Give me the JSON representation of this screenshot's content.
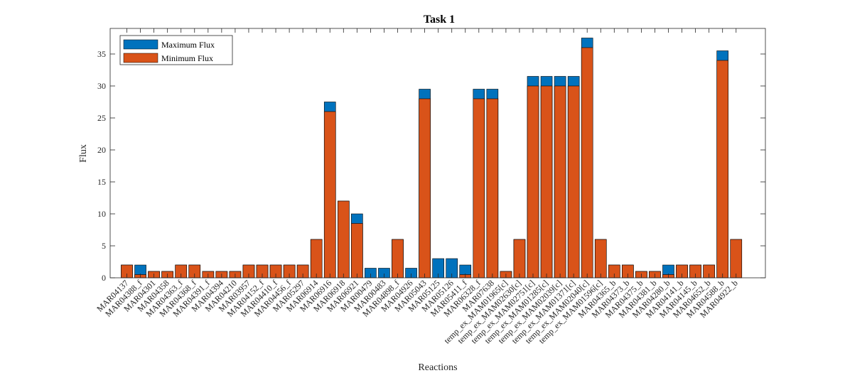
{
  "chart_data": {
    "type": "bar",
    "title": "Task 1",
    "xlabel": "Reactions",
    "ylabel": "Flux",
    "ylim": [
      0,
      39
    ],
    "yticks": [
      0,
      5,
      10,
      15,
      20,
      25,
      30,
      35
    ],
    "grid": false,
    "legend_position": "top-left",
    "categories": [
      "MAR04137",
      "MAR04388_f",
      "MAR04301",
      "MAR04358",
      "MAR04363_f",
      "MAR04368_f",
      "MAR04391_f",
      "MAR04394",
      "MAR04210",
      "MAR03957",
      "MAR04152_f",
      "MAR04410_f",
      "MAR04456_f",
      "MAR05297",
      "MAR06914",
      "MAR06916",
      "MAR06918",
      "MAR06921",
      "MAR00479",
      "MAR00483",
      "MAR04898_f",
      "MAR04926",
      "MAR05043",
      "MAR05125",
      "MAR05126",
      "MAR05411_f",
      "MAR06328_f",
      "MAR07638",
      "temp_ex_MAM01965[c]",
      "temp_ex_MAM02630[c]",
      "temp_ex_MAM02751[c]",
      "temp_ex_MAM01285[c]",
      "temp_ex_MAM02039[c]",
      "temp_ex_MAM01371[c]",
      "temp_ex_MAM02040[c]",
      "temp_ex_MAM01596[c]",
      "MAR04365_b",
      "MAR04373_b",
      "MAR04375_b",
      "MAR04381_b",
      "MAR04280_b",
      "MAR04141_b",
      "MAR04145_b",
      "MAR04652_b",
      "MAR04588_b",
      "MAR04922_b"
    ],
    "series": [
      {
        "name": "Maximum Flux",
        "color": "#0072BD",
        "values": [
          2,
          2,
          1,
          1,
          2,
          2,
          1,
          1,
          1,
          2,
          2,
          2,
          2,
          2,
          6,
          27.5,
          12,
          10,
          1.5,
          1.5,
          6,
          1.5,
          29.5,
          3,
          3,
          2,
          29.5,
          29.5,
          1,
          6,
          31.5,
          31.5,
          31.5,
          31.5,
          37.5,
          6,
          2,
          2,
          1,
          1,
          2,
          2,
          2,
          2,
          35.5,
          6
        ]
      },
      {
        "name": "Minimum Flux",
        "color": "#D95319",
        "values": [
          2,
          0.5,
          1,
          1,
          2,
          2,
          1,
          1,
          1,
          2,
          2,
          2,
          2,
          2,
          6,
          26,
          12,
          8.5,
          0,
          0,
          6,
          0,
          28,
          0,
          0,
          0.5,
          28,
          28,
          1,
          6,
          30,
          30,
          30,
          30,
          36,
          6,
          2,
          2,
          1,
          1,
          0.5,
          2,
          2,
          2,
          34,
          6
        ]
      }
    ]
  }
}
